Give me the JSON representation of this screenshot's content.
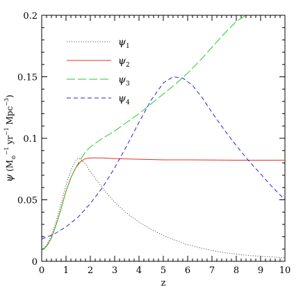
{
  "chart_data": {
    "type": "line",
    "xlabel": "z",
    "ylabel_parts": {
      "symbol": "ψ",
      "unit_open": " (M",
      "unit_sub": "⊙",
      "unit_exp1": "−1",
      "unit_mid": " yr",
      "unit_exp2": "−1",
      "unit_mid2": " Mpc",
      "unit_exp3": "−3",
      "unit_close": ")"
    },
    "xlim": [
      0,
      10
    ],
    "ylim": [
      0,
      0.2
    ],
    "xticks": [
      0,
      1,
      2,
      3,
      4,
      5,
      6,
      7,
      8,
      9,
      10
    ],
    "xtick_labels": [
      "0",
      "1",
      "2",
      "3",
      "4",
      "5",
      "6",
      "7",
      "8",
      "9",
      "10"
    ],
    "yticks": [
      0,
      0.05,
      0.1,
      0.15,
      0.2
    ],
    "ytick_labels": [
      "0",
      "0.05",
      "0.1",
      "0.15",
      "0.2"
    ],
    "grid": false,
    "legend_placement": "top-left",
    "series": [
      {
        "name": "ψ",
        "subscript": "1",
        "color": "#555555",
        "dash": "dotted",
        "x": [
          0,
          0.2,
          0.4,
          0.6,
          0.8,
          1.0,
          1.2,
          1.4,
          1.5,
          1.6,
          1.8,
          2.0,
          2.3,
          2.6,
          3.0,
          3.5,
          4.0,
          4.5,
          5.0,
          5.5,
          6.0,
          6.5,
          7.0,
          7.5,
          8.0,
          8.5,
          9.0,
          9.5,
          10.0
        ],
        "y": [
          0.009,
          0.013,
          0.021,
          0.033,
          0.047,
          0.062,
          0.074,
          0.082,
          0.084,
          0.083,
          0.079,
          0.073,
          0.065,
          0.057,
          0.048,
          0.039,
          0.032,
          0.026,
          0.021,
          0.017,
          0.0135,
          0.011,
          0.0088,
          0.007,
          0.0058,
          0.0048,
          0.004,
          0.0035,
          0.003
        ]
      },
      {
        "name": "ψ",
        "subscript": "2",
        "color": "#e03020",
        "dash": "solid",
        "x": [
          0,
          0.2,
          0.4,
          0.6,
          0.8,
          1.0,
          1.2,
          1.4,
          1.6,
          1.8,
          2.0,
          2.2,
          2.5,
          3.0,
          4.0,
          5.0,
          6.0,
          7.0,
          8.0,
          9.0,
          10.0
        ],
        "y": [
          0.009,
          0.012,
          0.019,
          0.03,
          0.043,
          0.057,
          0.068,
          0.076,
          0.081,
          0.0835,
          0.084,
          0.084,
          0.084,
          0.0835,
          0.083,
          0.0825,
          0.0825,
          0.0823,
          0.0822,
          0.0822,
          0.0822
        ]
      },
      {
        "name": "ψ",
        "subscript": "3",
        "color": "#22cc22",
        "dash": "longdash",
        "x": [
          0,
          0.2,
          0.4,
          0.6,
          0.8,
          1.0,
          1.2,
          1.4,
          1.6,
          1.8,
          2.0,
          2.5,
          3.0,
          3.5,
          4.0,
          4.5,
          5.0,
          5.5,
          6.0,
          6.5,
          7.0,
          7.5,
          8.0,
          8.4
        ],
        "y": [
          0.009,
          0.012,
          0.019,
          0.03,
          0.043,
          0.057,
          0.068,
          0.076,
          0.083,
          0.089,
          0.093,
          0.1,
          0.106,
          0.113,
          0.12,
          0.128,
          0.136,
          0.144,
          0.153,
          0.163,
          0.174,
          0.185,
          0.195,
          0.2
        ]
      },
      {
        "name": "ψ",
        "subscript": "4",
        "color": "#2222dd",
        "dash": "dashed",
        "x": [
          0,
          0.5,
          1.0,
          1.5,
          2.0,
          2.5,
          3.0,
          3.5,
          4.0,
          4.5,
          5.0,
          5.4,
          5.8,
          6.2,
          6.6,
          7.0,
          7.5,
          8.0,
          8.5,
          9.0,
          9.5,
          10.0
        ],
        "y": [
          0.018,
          0.022,
          0.028,
          0.036,
          0.047,
          0.06,
          0.076,
          0.094,
          0.113,
          0.131,
          0.145,
          0.15,
          0.149,
          0.143,
          0.133,
          0.121,
          0.107,
          0.094,
          0.082,
          0.071,
          0.06,
          0.05
        ]
      }
    ]
  }
}
